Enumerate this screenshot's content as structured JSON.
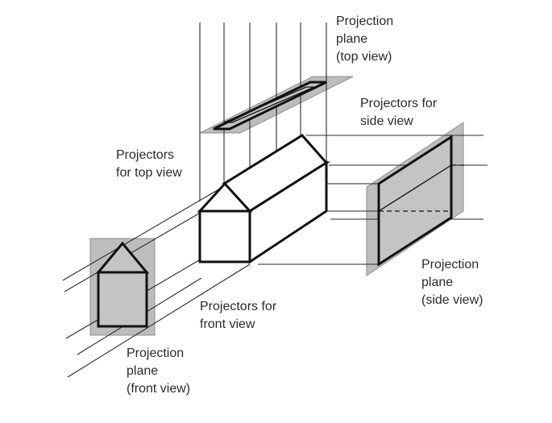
{
  "diagram": {
    "labels": {
      "top_plane": [
        "Projection",
        "plane",
        "(top view)"
      ],
      "side_projectors": [
        "Projectors for",
        "side view"
      ],
      "top_projectors": [
        "Projectors",
        "for top view"
      ],
      "side_plane": [
        "Projection",
        "plane",
        "(side view)"
      ],
      "front_projectors": [
        "Projectors for",
        "front view"
      ],
      "front_plane": [
        "Projection",
        "plane",
        "(front view)"
      ]
    },
    "colors": {
      "plane_fill": "#bdbdbd",
      "line": "#111111",
      "background": "#ffffff"
    }
  }
}
